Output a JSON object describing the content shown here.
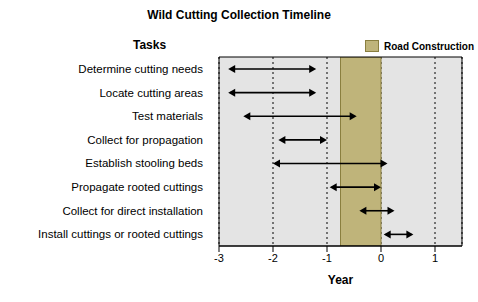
{
  "chart_data": {
    "type": "range_bar",
    "title": "Wild Cutting Collection Timeline",
    "y_label": "Tasks",
    "x_label": "Year",
    "orientation": "horizontal",
    "categories": [
      "Determine cutting needs",
      "Locate cutting areas",
      "Test materials",
      "Collect for propagation",
      "Establish stooling beds",
      "Propagate rooted cuttings",
      "Collect for direct installation",
      "Install cuttings or rooted cuttings"
    ],
    "values": [
      [
        -2.83,
        -1.2
      ],
      [
        -2.83,
        -1.2
      ],
      [
        -2.55,
        -0.45
      ],
      [
        -1.9,
        -1.0
      ],
      [
        -2.0,
        0.12
      ],
      [
        -0.95,
        0.0
      ],
      [
        -0.4,
        0.25
      ],
      [
        0.05,
        0.6
      ]
    ],
    "color": "#000000",
    "marker": "arrow",
    "xlim": [
      -3,
      1.5
    ],
    "xticks": [
      -3,
      -2,
      -1,
      0,
      1
    ],
    "grid": true,
    "legend": "upper right",
    "annotations": [
      {
        "label": "Road Construction",
        "x_start": -0.75,
        "x_end": 0,
        "color": "#bfb47a"
      }
    ]
  }
}
